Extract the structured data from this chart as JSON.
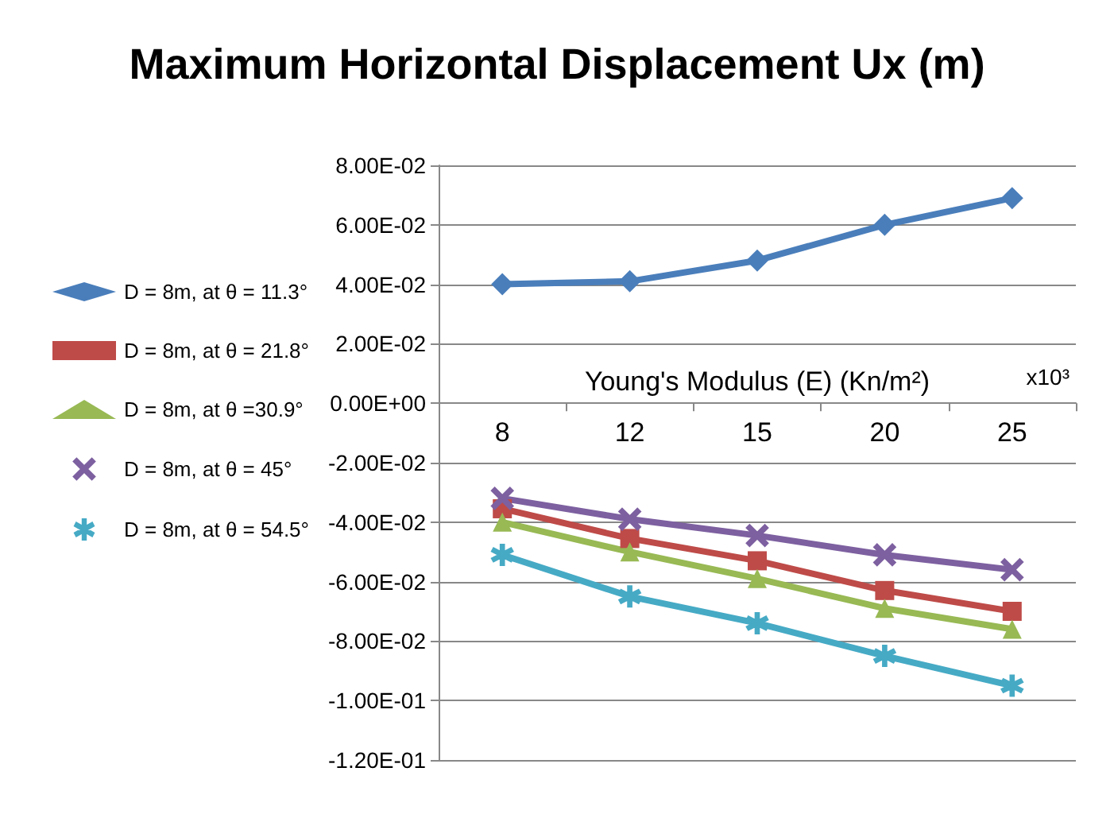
{
  "chart_data": {
    "type": "line",
    "title": "Maximum Horizontal Displacement Ux (m)",
    "xlabel": "Young's Modulus (E) (Kn/m²)",
    "annotations": [
      "x10³"
    ],
    "categories": [
      "8",
      "12",
      "15",
      "20",
      "25"
    ],
    "series": [
      {
        "name": "D = 8m, at θ = 11.3°",
        "color": "#4a7ebb",
        "marker": "diamond",
        "values": [
          0.04,
          0.041,
          0.048,
          0.06,
          0.069
        ]
      },
      {
        "name": "D = 8m, at θ = 21.8°",
        "color": "#be4b48",
        "marker": "square",
        "values": [
          -0.0355,
          -0.0455,
          -0.053,
          -0.063,
          -0.07
        ]
      },
      {
        "name": "D = 8m, at θ =30.9°",
        "color": "#98b954",
        "marker": "triangle",
        "values": [
          -0.04,
          -0.05,
          -0.059,
          -0.069,
          -0.076
        ]
      },
      {
        "name": "D = 8m, at θ = 45°",
        "color": "#7d60a0",
        "marker": "cross",
        "values": [
          -0.032,
          -0.039,
          -0.0445,
          -0.051,
          -0.056
        ]
      },
      {
        "name": "D = 8m, at θ = 54.5°",
        "color": "#46aac5",
        "marker": "star",
        "values": [
          -0.051,
          -0.065,
          -0.074,
          -0.085,
          -0.095
        ]
      }
    ],
    "ylim": [
      -0.12,
      0.08
    ],
    "yticks": [
      {
        "value": -0.12,
        "label": "-1.20E-01"
      },
      {
        "value": -0.1,
        "label": "-1.00E-01"
      },
      {
        "value": -0.08,
        "label": "-8.00E-02"
      },
      {
        "value": -0.06,
        "label": "-6.00E-02"
      },
      {
        "value": -0.04,
        "label": "-4.00E-02"
      },
      {
        "value": -0.02,
        "label": "-2.00E-02"
      },
      {
        "value": 0,
        "label": "0.00E+00"
      },
      {
        "value": 0.02,
        "label": "2.00E-02"
      },
      {
        "value": 0.04,
        "label": "4.00E-02"
      },
      {
        "value": 0.06,
        "label": "6.00E-02"
      },
      {
        "value": 0.08,
        "label": "8.00E-02"
      }
    ],
    "grid": "y",
    "legend": "left",
    "line_style": "solid"
  }
}
